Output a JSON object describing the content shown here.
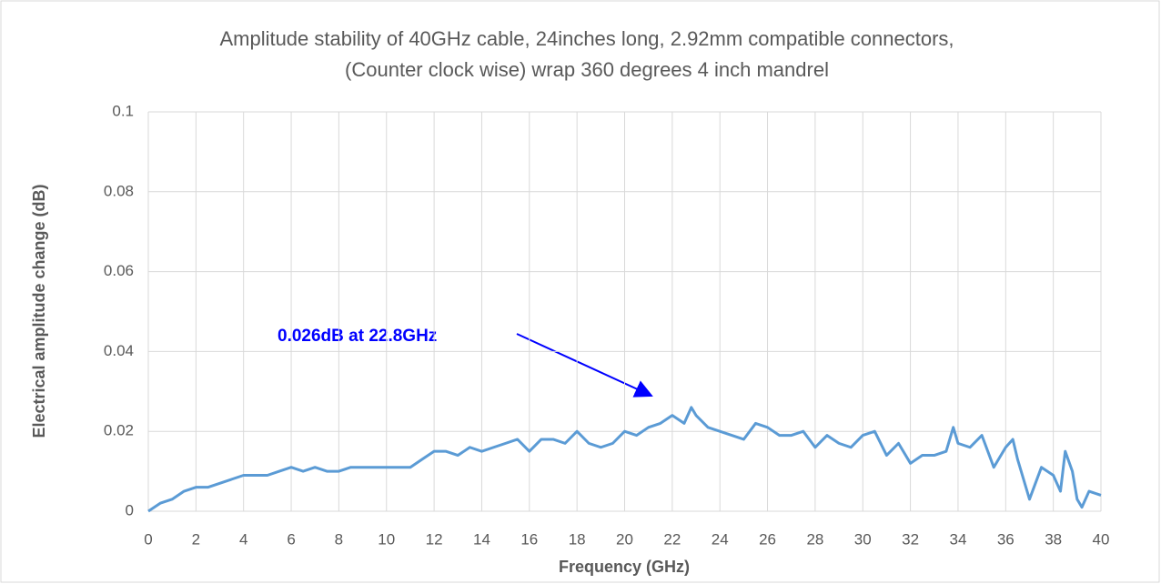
{
  "chart_data": {
    "type": "line",
    "title": [
      "Amplitude stability of 40GHz cable, 24inches long, 2.92mm compatible connectors,",
      "(Counter clock wise) wrap 360 degrees 4 inch mandrel"
    ],
    "x_label": "Frequency (GHz)",
    "y_label": "Electrical amplitude change (dB)",
    "annotation": "0.026dB at 22.8GHz",
    "annotation_color": "#0000ff",
    "grid": true,
    "xlim": [
      0,
      40
    ],
    "xticks": [
      0,
      2,
      4,
      6,
      8,
      10,
      12,
      14,
      16,
      18,
      20,
      22,
      24,
      26,
      28,
      30,
      32,
      34,
      36,
      38,
      40
    ],
    "ylim": [
      0,
      0.1
    ],
    "yticks": [
      0,
      0.02,
      0.04,
      0.06,
      0.08,
      0.1
    ],
    "x": [
      0,
      0.5,
      1,
      1.5,
      2,
      2.5,
      3,
      3.5,
      4,
      4.5,
      5,
      5.5,
      6,
      6.5,
      7,
      7.5,
      8,
      8.5,
      9,
      9.5,
      10,
      10.5,
      11,
      11.5,
      12,
      12.5,
      13,
      13.5,
      14,
      14.5,
      15,
      15.5,
      16,
      16.5,
      17,
      17.5,
      18,
      18.5,
      19,
      19.5,
      20,
      20.5,
      21,
      21.5,
      22,
      22.5,
      22.8,
      23,
      23.5,
      24,
      24.5,
      25,
      25.5,
      26,
      26.5,
      27,
      27.5,
      28,
      28.5,
      29,
      29.5,
      30,
      30.5,
      31,
      31.5,
      32,
      32.5,
      33,
      33.5,
      33.8,
      34,
      34.5,
      35,
      35.5,
      36,
      36.3,
      36.5,
      37,
      37.5,
      38,
      38.3,
      38.5,
      38.8,
      39,
      39.2,
      39.5,
      40
    ],
    "series": [
      {
        "color": "#5b9bd5",
        "values": [
          0,
          0.002,
          0.003,
          0.005,
          0.006,
          0.006,
          0.007,
          0.008,
          0.009,
          0.009,
          0.009,
          0.01,
          0.011,
          0.01,
          0.011,
          0.01,
          0.01,
          0.011,
          0.011,
          0.011,
          0.011,
          0.011,
          0.011,
          0.013,
          0.015,
          0.015,
          0.014,
          0.016,
          0.015,
          0.016,
          0.017,
          0.018,
          0.015,
          0.018,
          0.018,
          0.017,
          0.02,
          0.017,
          0.016,
          0.017,
          0.02,
          0.019,
          0.021,
          0.022,
          0.024,
          0.022,
          0.026,
          0.024,
          0.021,
          0.02,
          0.019,
          0.018,
          0.022,
          0.021,
          0.019,
          0.019,
          0.02,
          0.016,
          0.019,
          0.017,
          0.016,
          0.019,
          0.02,
          0.014,
          0.017,
          0.012,
          0.014,
          0.014,
          0.015,
          0.021,
          0.017,
          0.016,
          0.019,
          0.011,
          0.016,
          0.018,
          0.013,
          0.003,
          0.011,
          0.009,
          0.005,
          0.015,
          0.01,
          0.003,
          0.001,
          0.005,
          0.004
        ]
      }
    ]
  }
}
